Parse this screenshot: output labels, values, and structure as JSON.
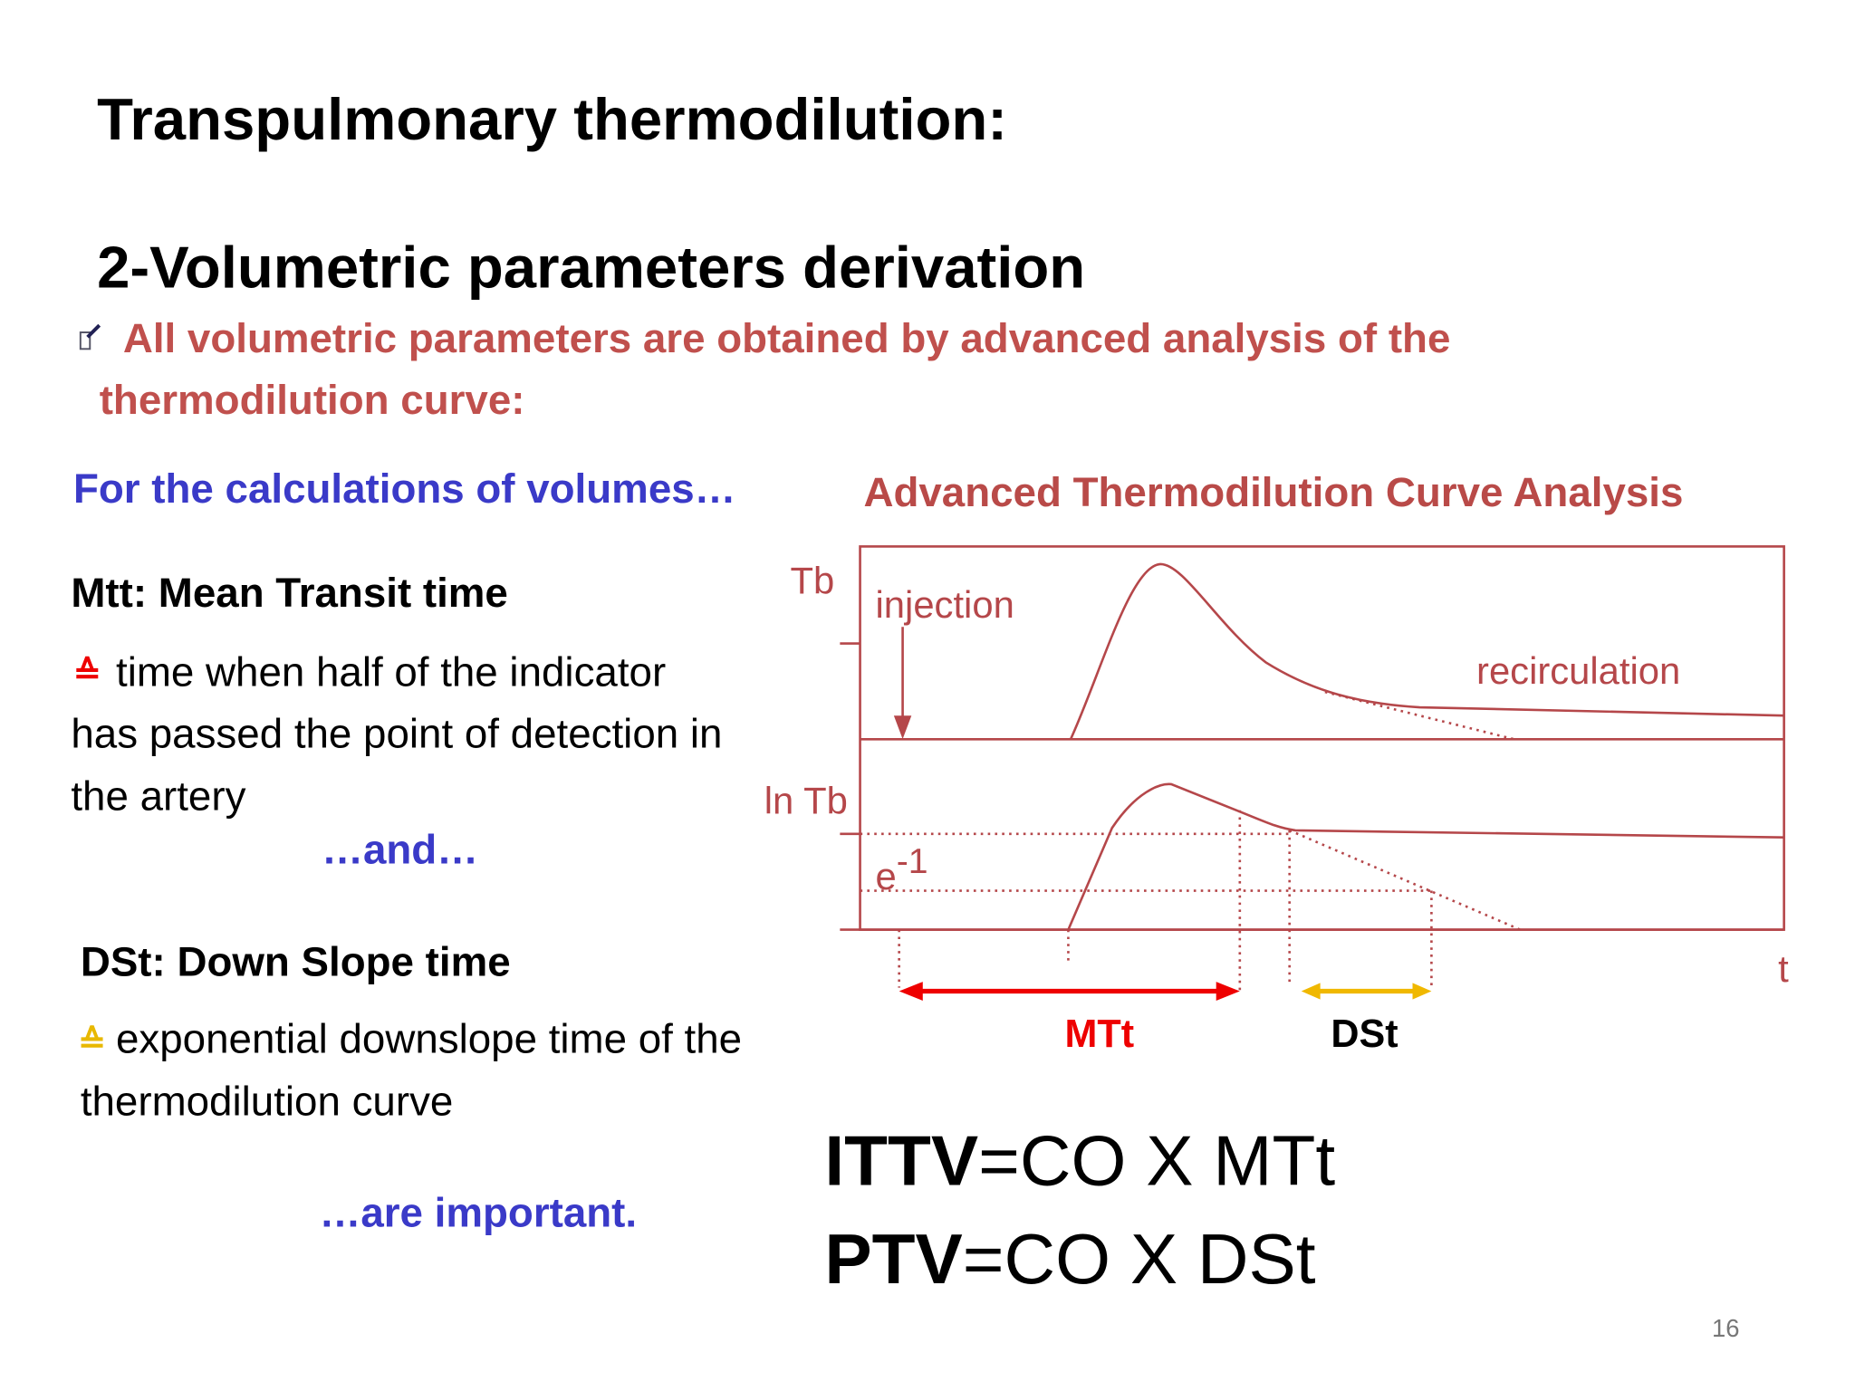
{
  "title": "Transpulmonary thermodilution:",
  "subtitle": "2-Volumetric parameters derivation",
  "bullet": {
    "lines": [
      "All volumetric parameters are obtained by advanced analysis of the",
      "thermodilution curve:"
    ]
  },
  "left": {
    "intro": "For the calculations of volumes…",
    "mtt": {
      "heading": "Mtt: Mean Transit  time",
      "symbol": "≙",
      "lines": [
        "time when half of the indicator",
        "has passed the point of detection in",
        "the artery"
      ]
    },
    "and": "…and…",
    "dst": {
      "heading": "DSt: Down Slope time",
      "symbol": "≙",
      "lines": [
        "exponential downslope time of the",
        "thermodilution curve"
      ]
    },
    "outro": "…are important."
  },
  "diagram": {
    "title": "Advanced Thermodilution Curve Analysis",
    "labels": {
      "tb": "Tb",
      "injection": "injection",
      "recirculation": "recirculation",
      "ln_tb": "ln Tb",
      "e": "e",
      "e_exp": "-1",
      "t": "t",
      "mtt": "MTt",
      "dst": "DSt"
    }
  },
  "formulas": [
    {
      "bold": "ITTV",
      "rest": "=CO X MTt"
    },
    {
      "bold": "PTV",
      "rest": "=CO X DSt"
    }
  ],
  "page_number": "16"
}
